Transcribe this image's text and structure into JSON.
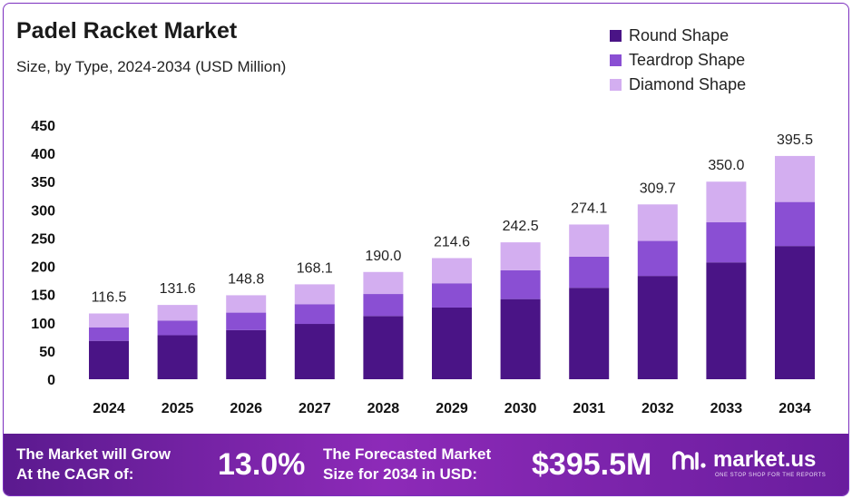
{
  "header": {
    "title": "Padel Racket Market",
    "subtitle": "Size, by Type, 2024-2034 (USD Million)"
  },
  "chart_data": {
    "type": "bar",
    "stacked": true,
    "categories": [
      "2024",
      "2025",
      "2026",
      "2027",
      "2028",
      "2029",
      "2030",
      "2031",
      "2032",
      "2033",
      "2034"
    ],
    "series": [
      {
        "name": "Round Shape",
        "color": "#4a1486",
        "values": [
          68.0,
          78.0,
          87.0,
          98.0,
          112.0,
          127.0,
          142.0,
          162.0,
          183.0,
          207.0,
          236.0
        ]
      },
      {
        "name": "Teardrop Shape",
        "color": "#8a4fd3",
        "values": [
          24.0,
          26.0,
          31.0,
          35.0,
          39.0,
          43.0,
          51.0,
          55.0,
          62.0,
          71.0,
          78.0
        ]
      },
      {
        "name": "Diamond Shape",
        "color": "#d3aef0",
        "values": [
          24.5,
          27.6,
          30.8,
          35.1,
          39.0,
          44.6,
          49.5,
          57.1,
          64.7,
          72.0,
          81.5
        ]
      }
    ],
    "totals": [
      "116.5",
      "131.6",
      "148.8",
      "168.1",
      "190.0",
      "214.6",
      "242.5",
      "274.1",
      "309.7",
      "350.0",
      "395.5"
    ],
    "y_ticks": [
      0,
      50,
      100,
      150,
      200,
      250,
      300,
      350,
      400,
      450
    ],
    "ylim": [
      0,
      450
    ],
    "grid": false,
    "legend_position": "top-right"
  },
  "footer": {
    "cagr_text_line1": "The Market will Grow",
    "cagr_text_line2": "At the CAGR of:",
    "cagr_value": "13.0%",
    "forecast_text_line1": "The Forecasted Market",
    "forecast_text_line2": "Size for 2034 in USD:",
    "forecast_value": "$395.5M",
    "brand_name": "market.us",
    "brand_tagline": "ONE STOP SHOP FOR THE REPORTS",
    "brand_icon": "market-us-logo-icon"
  }
}
